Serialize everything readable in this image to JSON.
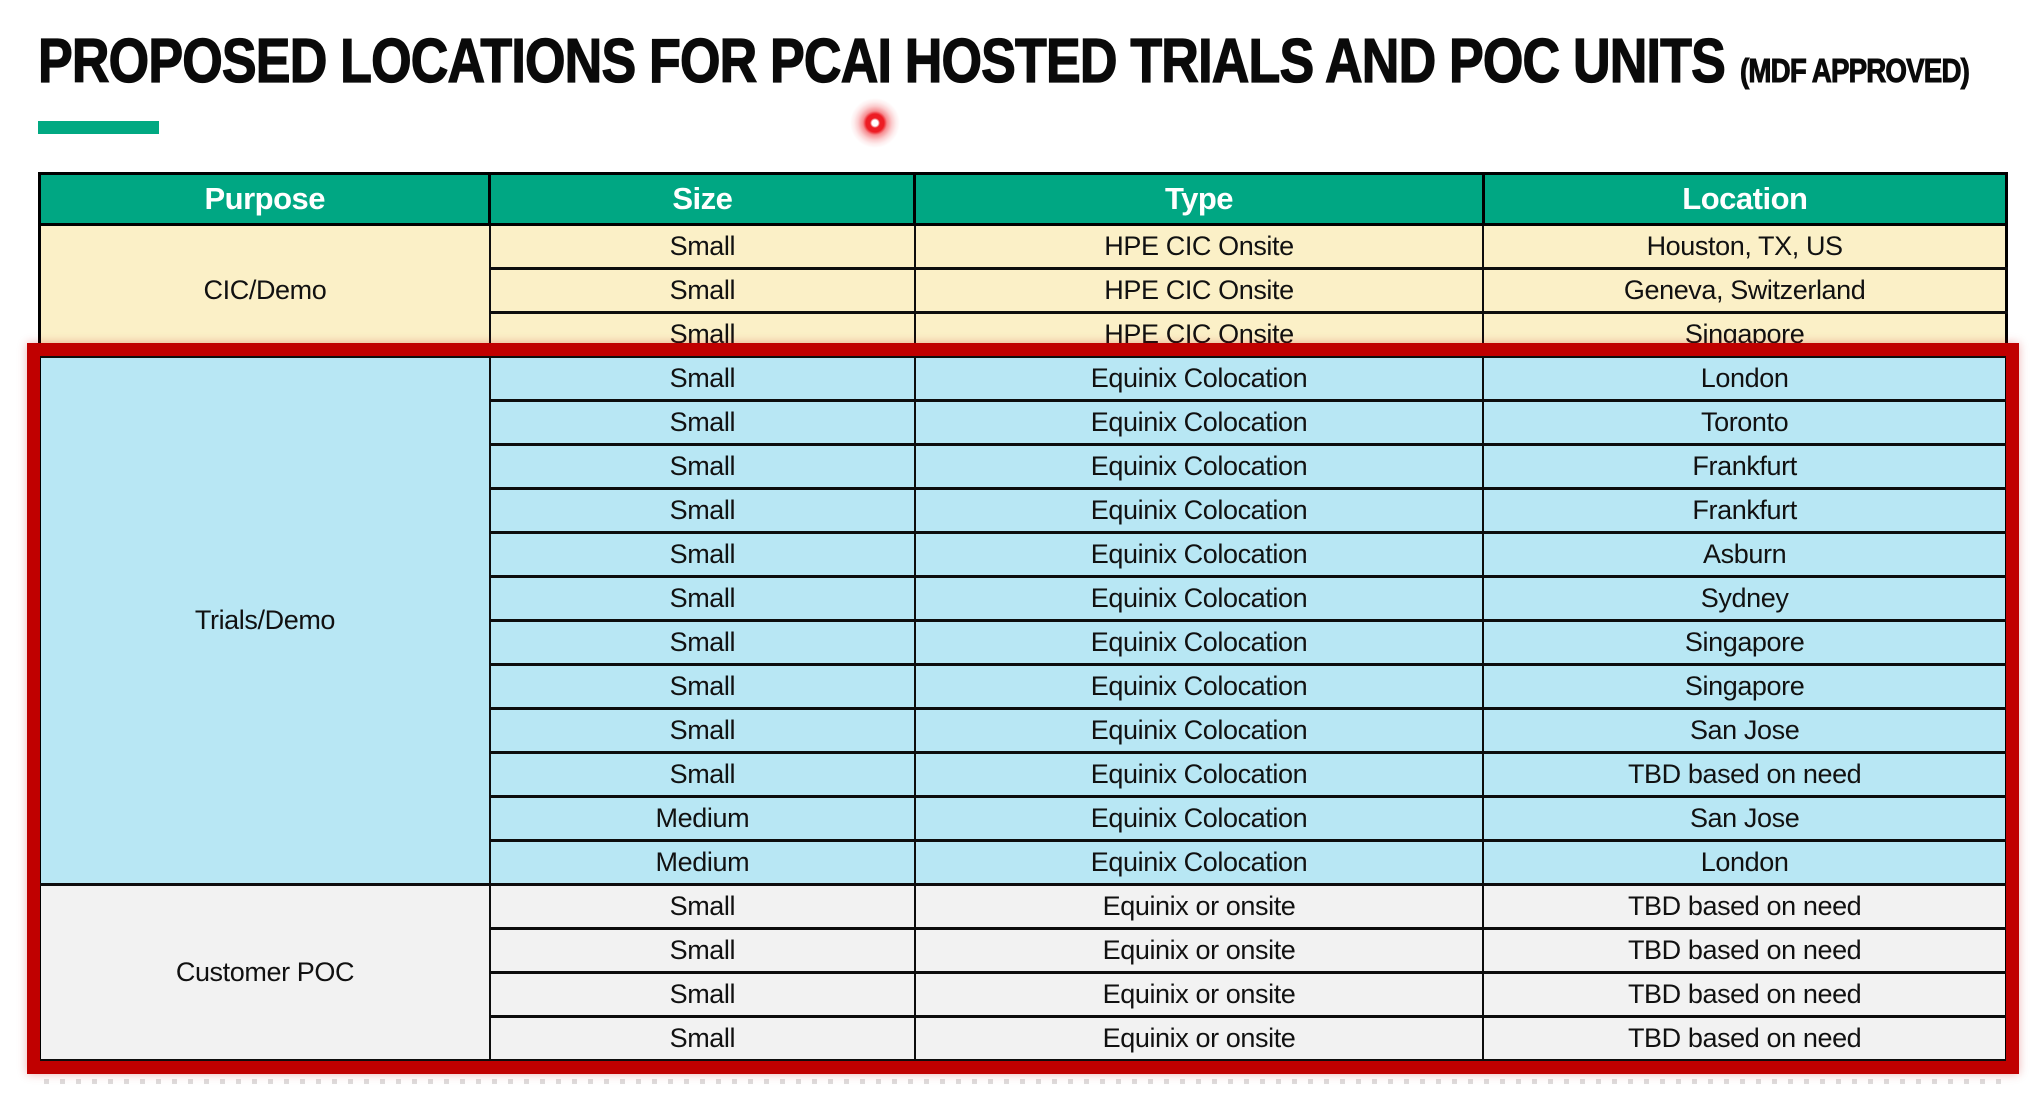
{
  "header": {
    "title": "PROPOSED LOCATIONS FOR PCAI HOSTED TRIALS AND POC UNITS",
    "title_suffix": "(MDF APPROVED)"
  },
  "colors": {
    "accent-green": "#01A982",
    "header-teal": "#00A783",
    "cic-cream": "#FBF0C7",
    "trials-blue": "#B8E7F4",
    "poc-gray": "#F2F2F2",
    "highlight-red": "#C00000",
    "laser-red": "#ED1C24"
  },
  "table": {
    "columns": [
      "Purpose",
      "Size",
      "Type",
      "Location"
    ],
    "column_widths_pct": [
      22.9,
      21.6,
      28.9,
      26.6
    ],
    "sections": [
      {
        "purpose": "CIC/Demo",
        "bg_key": "cic-cream",
        "highlighted": false,
        "rows": [
          [
            "Small",
            "HPE CIC Onsite",
            "Houston, TX, US"
          ],
          [
            "Small",
            "HPE CIC Onsite",
            "Geneva, Switzerland"
          ],
          [
            "Small",
            "HPE CIC Onsite",
            "Singapore"
          ]
        ]
      },
      {
        "purpose": "Trials/Demo",
        "bg_key": "trials-blue",
        "highlighted": true,
        "rows": [
          [
            "Small",
            "Equinix Colocation",
            "London"
          ],
          [
            "Small",
            "Equinix Colocation",
            "Toronto"
          ],
          [
            "Small",
            "Equinix Colocation",
            "Frankfurt"
          ],
          [
            "Small",
            "Equinix Colocation",
            "Frankfurt"
          ],
          [
            "Small",
            "Equinix Colocation",
            "Asburn"
          ],
          [
            "Small",
            "Equinix Colocation",
            "Sydney"
          ],
          [
            "Small",
            "Equinix Colocation",
            "Singapore"
          ],
          [
            "Small",
            "Equinix Colocation",
            "Singapore"
          ],
          [
            "Small",
            "Equinix Colocation",
            "San Jose"
          ],
          [
            "Small",
            "Equinix Colocation",
            "TBD based on need"
          ],
          [
            "Medium",
            "Equinix Colocation",
            "San Jose"
          ],
          [
            "Medium",
            "Equinix Colocation",
            "London"
          ]
        ]
      },
      {
        "purpose": "Customer POC",
        "bg_key": "poc-gray",
        "highlighted": true,
        "rows": [
          [
            "Small",
            "Equinix or onsite",
            "TBD based on need"
          ],
          [
            "Small",
            "Equinix or onsite",
            "TBD based on need"
          ],
          [
            "Small",
            "Equinix or onsite",
            "TBD based on need"
          ],
          [
            "Small",
            "Equinix or onsite",
            "TBD based on need"
          ]
        ]
      }
    ]
  },
  "annotations": {
    "laser_pointer_dot": true,
    "red_frame_around": [
      "Trials/Demo",
      "Customer POC"
    ]
  }
}
